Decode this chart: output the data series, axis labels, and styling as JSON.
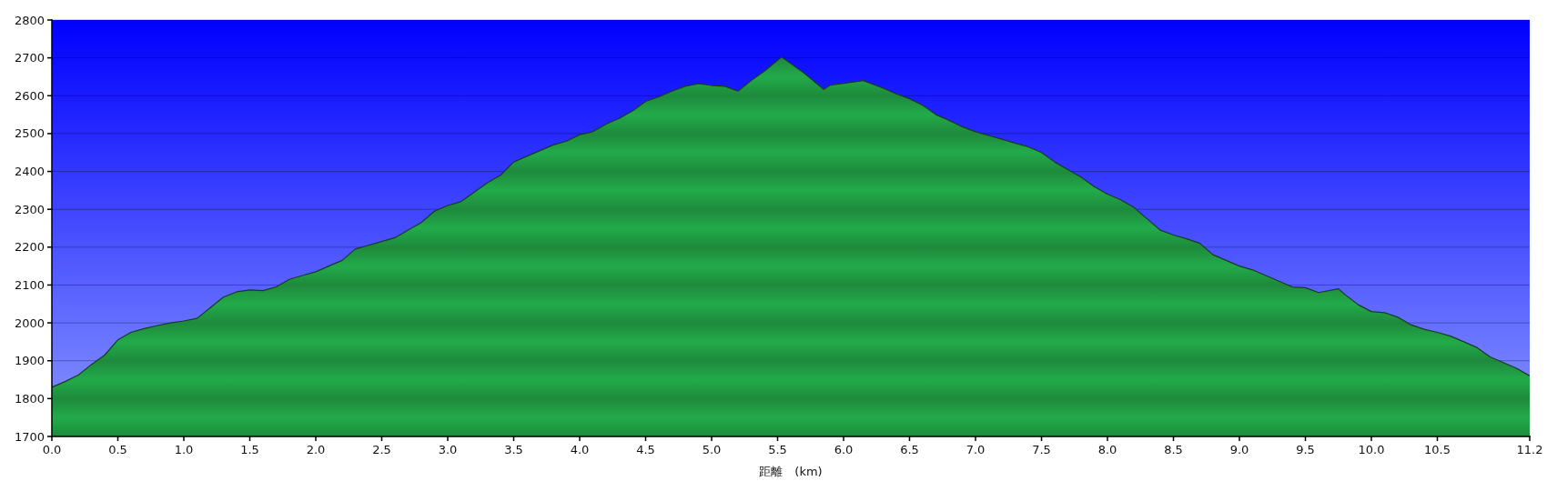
{
  "chart_data": {
    "type": "area",
    "xlabel": "距離　(km)",
    "color": "#22ab4a",
    "grid": "y",
    "xlim": [
      0,
      11.2
    ],
    "ylim": [
      1700,
      2800
    ],
    "xticks": [
      {
        "value": 0,
        "label": "0.0"
      },
      {
        "value": 0.5,
        "label": "0.5"
      },
      {
        "value": 1,
        "label": "1.0"
      },
      {
        "value": 1.5,
        "label": "1.5"
      },
      {
        "value": 2,
        "label": "2.0"
      },
      {
        "value": 2.5,
        "label": "2.5"
      },
      {
        "value": 3,
        "label": "3.0"
      },
      {
        "value": 3.5,
        "label": "3.5"
      },
      {
        "value": 4,
        "label": "4.0"
      },
      {
        "value": 4.5,
        "label": "4.5"
      },
      {
        "value": 5,
        "label": "5.0"
      },
      {
        "value": 5.5,
        "label": "5.5"
      },
      {
        "value": 6,
        "label": "6.0"
      },
      {
        "value": 6.5,
        "label": "6.5"
      },
      {
        "value": 7,
        "label": "7.0"
      },
      {
        "value": 7.5,
        "label": "7.5"
      },
      {
        "value": 8,
        "label": "8.0"
      },
      {
        "value": 8.5,
        "label": "8.5"
      },
      {
        "value": 9,
        "label": "9.0"
      },
      {
        "value": 9.5,
        "label": "9.5"
      },
      {
        "value": 10,
        "label": "10.0"
      },
      {
        "value": 10.5,
        "label": "10.5"
      },
      {
        "value": 11.2,
        "label": "11.2"
      }
    ],
    "yticks": [
      1700,
      1800,
      1900,
      2000,
      2100,
      2200,
      2300,
      2400,
      2500,
      2600,
      2700,
      2800
    ],
    "x": [
      0,
      0.1,
      0.2,
      0.3,
      0.4,
      0.5,
      0.6,
      0.7,
      0.8,
      0.9,
      1.0,
      1.1,
      1.2,
      1.3,
      1.4,
      1.5,
      1.6,
      1.7,
      1.8,
      1.9,
      2.0,
      2.1,
      2.2,
      2.3,
      2.4,
      2.5,
      2.6,
      2.7,
      2.8,
      2.9,
      3.0,
      3.1,
      3.2,
      3.3,
      3.4,
      3.5,
      3.6,
      3.7,
      3.8,
      3.9,
      4.0,
      4.1,
      4.2,
      4.3,
      4.4,
      4.5,
      4.6,
      4.7,
      4.8,
      4.9,
      5.0,
      5.1,
      5.2,
      5.3,
      5.4,
      5.53,
      5.6,
      5.7,
      5.85,
      5.9,
      6.0,
      6.15,
      6.3,
      6.4,
      6.5,
      6.6,
      6.7,
      6.8,
      6.9,
      7.0,
      7.1,
      7.2,
      7.3,
      7.4,
      7.5,
      7.6,
      7.7,
      7.8,
      7.9,
      8.0,
      8.1,
      8.2,
      8.3,
      8.4,
      8.5,
      8.6,
      8.7,
      8.8,
      8.9,
      9.0,
      9.1,
      9.2,
      9.3,
      9.4,
      9.5,
      9.6,
      9.75,
      9.8,
      9.9,
      10.0,
      10.1,
      10.2,
      10.3,
      10.4,
      10.5,
      10.6,
      10.7,
      10.8,
      10.9,
      11.0,
      11.1,
      11.2
    ],
    "values": [
      1830,
      1845,
      1862,
      1890,
      1915,
      1955,
      1975,
      1985,
      1993,
      2000,
      2005,
      2012,
      2040,
      2068,
      2082,
      2087,
      2085,
      2095,
      2115,
      2125,
      2135,
      2150,
      2165,
      2195,
      2205,
      2215,
      2225,
      2245,
      2265,
      2295,
      2310,
      2320,
      2345,
      2370,
      2390,
      2425,
      2440,
      2455,
      2470,
      2480,
      2497,
      2505,
      2525,
      2540,
      2560,
      2585,
      2597,
      2612,
      2625,
      2632,
      2627,
      2625,
      2612,
      2640,
      2665,
      2702,
      2685,
      2660,
      2617,
      2628,
      2633,
      2640,
      2620,
      2605,
      2592,
      2575,
      2550,
      2535,
      2518,
      2505,
      2495,
      2485,
      2475,
      2465,
      2450,
      2425,
      2405,
      2385,
      2360,
      2340,
      2325,
      2305,
      2275,
      2245,
      2232,
      2222,
      2210,
      2180,
      2165,
      2150,
      2140,
      2125,
      2110,
      2095,
      2093,
      2080,
      2090,
      2075,
      2048,
      2030,
      2027,
      2015,
      1995,
      1983,
      1975,
      1965,
      1950,
      1935,
      1910,
      1895,
      1880,
      1860
    ]
  }
}
